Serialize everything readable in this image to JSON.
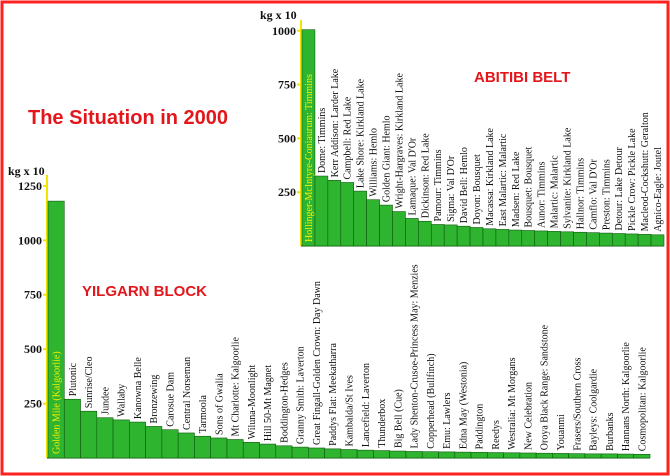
{
  "colors": {
    "bar": "#2fb42f",
    "bar_edge": "#0e5a0e",
    "frame": "#ff2020",
    "axis": "#f2e400",
    "title": "#e3161b"
  },
  "figure": {
    "title": "The Situation in 2000"
  },
  "chart_data": [
    {
      "type": "bar",
      "title": "YILGARN BLOCK",
      "ylabel": "kg x 10",
      "ylim": [
        0,
        1300
      ],
      "yticks": [
        250,
        500,
        750,
        1000,
        1250
      ],
      "grid": false,
      "categories": [
        "Golden Mile (Kalgoorlie)",
        "Plutonic",
        "Sunrise/Cleo",
        "Jundee",
        "Wallaby",
        "Kanowna Belle",
        "Bronzewing",
        "Carosue Dam",
        "Central Norseman",
        "Tarmoola",
        "Sons of Gwalia",
        "Mt Charlotte: Kalgoorlie",
        "Wiluna-Moonlight",
        "Hill 50-Mt Magnet",
        "Boddington-Hedges",
        "Granny Smith: Laverton",
        "Great Fingall-Golden Crown: Day Dawn",
        "Paddys Flat: Meekatharra",
        "Kambalda/St Ives",
        "Lancefield: Laverton",
        "Thunderbox",
        "Big Bell (Cue)",
        "Lady Shenton-Crusoe-Princess May: Menzies",
        "Copperhead (Bullfinch)",
        "Emu: Lawlers",
        "Edna May (Westonia)",
        "Paddington",
        "Reedys",
        "Westralia: Mt Morgans",
        "New Celebration",
        "Oroya Black Range: Sandstone",
        "Youanmi",
        "Frasers/Southern Cross",
        "Bayleys: Coolgardie",
        "Burbanks",
        "Hannans North: Kalgoorlie",
        "Cosmopolitan: Kalgoorlie"
      ],
      "values": [
        1180,
        270,
        215,
        185,
        175,
        165,
        145,
        130,
        115,
        100,
        92,
        85,
        72,
        64,
        56,
        50,
        46,
        42,
        39,
        36,
        34,
        32,
        30,
        29,
        28,
        27,
        26,
        25,
        24,
        23,
        22,
        21,
        20,
        19,
        19,
        18,
        17
      ]
    },
    {
      "type": "bar",
      "title": "ABITIBI BELT",
      "ylabel": "kg x 10",
      "ylim": [
        0,
        1050
      ],
      "yticks": [
        250,
        500,
        750,
        1000
      ],
      "grid": false,
      "categories": [
        "Hollinger-McIntyre-Coniaurum: Timmins",
        "Dome: Timmins",
        "Kerr Addison: Larder Lake",
        "Campbell: Red Lake",
        "Lake Shore: Kirkland Lake",
        "Williams: Hemlo",
        "Golden Giant: Hemlo",
        "Wright-Hargraves: Kirkland Lake",
        "Lamaque: Val D'Or",
        "Dickinson: Red Lake",
        "Pamour: Timmins",
        "Sigma: Val D'Or",
        "David Bell: Hemlo",
        "Doyon: Bousquet",
        "Macassa: Kirkland Lake",
        "East Malartic: Malartic",
        "Madsen: Red Lake",
        "Bousquet: Bousquet",
        "Aunor: Timmins",
        "Malartic: Malartic",
        "Sylvanite: Kirkland Lake",
        "Hallnor: Timmins",
        "Camflo: Val D'Or",
        "Preston: Timmins",
        "Detour: Lake Detour",
        "Pickle Crow: Pickle Lake",
        "Macleod-Cockshutt: Geralton",
        "Agnico-Eagle: Joutel"
      ],
      "values": [
        1005,
        325,
        305,
        295,
        255,
        215,
        190,
        160,
        128,
        115,
        100,
        98,
        92,
        86,
        80,
        77,
        74,
        72,
        70,
        68,
        66,
        64,
        62,
        60,
        58,
        56,
        54,
        52
      ]
    }
  ]
}
